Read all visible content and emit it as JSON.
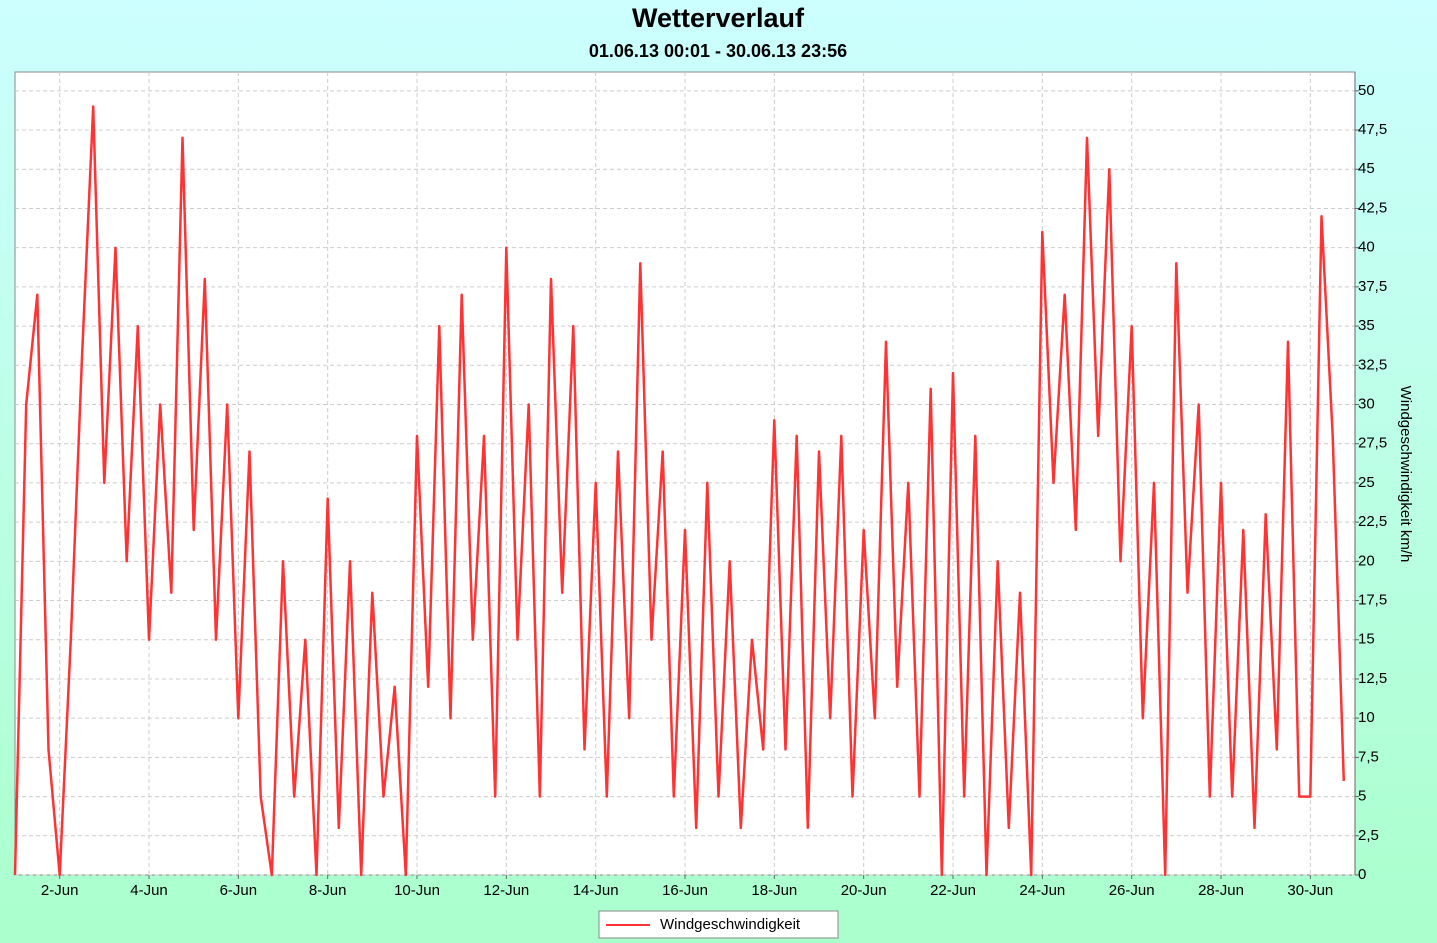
{
  "chart_data": {
    "type": "line",
    "title": "Wetterverlauf",
    "subtitle": "01.06.13 00:01 - 30.06.13 23:56",
    "y_label": "Windgeschwindigkeit km/h",
    "x": [
      "2013-06-01T00:00",
      "2013-06-01T06:00",
      "2013-06-01T12:00",
      "2013-06-01T18:00",
      "2013-06-02T00:00",
      "2013-06-02T06:00",
      "2013-06-02T12:00",
      "2013-06-02T18:00",
      "2013-06-03T00:00",
      "2013-06-03T06:00",
      "2013-06-03T12:00",
      "2013-06-03T18:00",
      "2013-06-04T00:00",
      "2013-06-04T06:00",
      "2013-06-04T12:00",
      "2013-06-04T18:00",
      "2013-06-05T00:00",
      "2013-06-05T06:00",
      "2013-06-05T12:00",
      "2013-06-05T18:00",
      "2013-06-06T00:00",
      "2013-06-06T06:00",
      "2013-06-06T12:00",
      "2013-06-06T18:00",
      "2013-06-07T00:00",
      "2013-06-07T06:00",
      "2013-06-07T12:00",
      "2013-06-07T18:00",
      "2013-06-08T00:00",
      "2013-06-08T06:00",
      "2013-06-08T12:00",
      "2013-06-08T18:00",
      "2013-06-09T00:00",
      "2013-06-09T06:00",
      "2013-06-09T12:00",
      "2013-06-09T18:00",
      "2013-06-10T00:00",
      "2013-06-10T06:00",
      "2013-06-10T12:00",
      "2013-06-10T18:00",
      "2013-06-11T00:00",
      "2013-06-11T06:00",
      "2013-06-11T12:00",
      "2013-06-11T18:00",
      "2013-06-12T00:00",
      "2013-06-12T06:00",
      "2013-06-12T12:00",
      "2013-06-12T18:00",
      "2013-06-13T00:00",
      "2013-06-13T06:00",
      "2013-06-13T12:00",
      "2013-06-13T18:00",
      "2013-06-14T00:00",
      "2013-06-14T06:00",
      "2013-06-14T12:00",
      "2013-06-14T18:00",
      "2013-06-15T00:00",
      "2013-06-15T06:00",
      "2013-06-15T12:00",
      "2013-06-15T18:00",
      "2013-06-16T00:00",
      "2013-06-16T06:00",
      "2013-06-16T12:00",
      "2013-06-16T18:00",
      "2013-06-17T00:00",
      "2013-06-17T06:00",
      "2013-06-17T12:00",
      "2013-06-17T18:00",
      "2013-06-18T00:00",
      "2013-06-18T06:00",
      "2013-06-18T12:00",
      "2013-06-18T18:00",
      "2013-06-19T00:00",
      "2013-06-19T06:00",
      "2013-06-19T12:00",
      "2013-06-19T18:00",
      "2013-06-20T00:00",
      "2013-06-20T06:00",
      "2013-06-20T12:00",
      "2013-06-20T18:00",
      "2013-06-21T00:00",
      "2013-06-21T06:00",
      "2013-06-21T12:00",
      "2013-06-21T18:00",
      "2013-06-22T00:00",
      "2013-06-22T06:00",
      "2013-06-22T12:00",
      "2013-06-22T18:00",
      "2013-06-23T00:00",
      "2013-06-23T06:00",
      "2013-06-23T12:00",
      "2013-06-23T18:00",
      "2013-06-24T00:00",
      "2013-06-24T06:00",
      "2013-06-24T12:00",
      "2013-06-24T18:00",
      "2013-06-25T00:00",
      "2013-06-25T06:00",
      "2013-06-25T12:00",
      "2013-06-25T18:00",
      "2013-06-26T00:00",
      "2013-06-26T06:00",
      "2013-06-26T12:00",
      "2013-06-26T18:00",
      "2013-06-27T00:00",
      "2013-06-27T06:00",
      "2013-06-27T12:00",
      "2013-06-27T18:00",
      "2013-06-28T00:00",
      "2013-06-28T06:00",
      "2013-06-28T12:00",
      "2013-06-28T18:00",
      "2013-06-29T00:00",
      "2013-06-29T06:00",
      "2013-06-29T12:00",
      "2013-06-29T18:00",
      "2013-06-30T00:00",
      "2013-06-30T06:00",
      "2013-06-30T12:00",
      "2013-06-30T18:00"
    ],
    "series": [
      {
        "name": "Windgeschwindigkeit",
        "color": "#ff3333",
        "values": [
          0,
          30,
          37,
          8,
          0,
          15,
          33,
          49,
          25,
          40,
          20,
          35,
          15,
          30,
          18,
          47,
          22,
          38,
          15,
          30,
          10,
          27,
          5,
          0,
          20,
          5,
          15,
          0,
          24,
          3,
          20,
          0,
          18,
          5,
          12,
          0,
          28,
          12,
          35,
          10,
          37,
          15,
          28,
          5,
          40,
          15,
          30,
          5,
          38,
          18,
          35,
          8,
          25,
          5,
          27,
          10,
          39,
          15,
          27,
          5,
          22,
          3,
          25,
          5,
          20,
          3,
          15,
          8,
          29,
          8,
          28,
          3,
          27,
          10,
          28,
          5,
          22,
          10,
          34,
          12,
          25,
          5,
          31,
          0,
          32,
          5,
          28,
          0,
          20,
          3,
          18,
          0,
          41,
          25,
          37,
          22,
          47,
          28,
          45,
          20,
          35,
          10,
          25,
          0,
          39,
          18,
          30,
          5,
          25,
          5,
          22,
          3,
          23,
          8,
          34,
          5,
          5,
          42,
          28,
          6
        ]
      }
    ],
    "xlim": [
      "2013-06-01T00:00",
      "2013-07-01T00:00"
    ],
    "xticks": [
      {
        "value": "2013-06-02T00:00",
        "label": "2-Jun"
      },
      {
        "value": "2013-06-04T00:00",
        "label": "4-Jun"
      },
      {
        "value": "2013-06-06T00:00",
        "label": "6-Jun"
      },
      {
        "value": "2013-06-08T00:00",
        "label": "8-Jun"
      },
      {
        "value": "2013-06-10T00:00",
        "label": "10-Jun"
      },
      {
        "value": "2013-06-12T00:00",
        "label": "12-Jun"
      },
      {
        "value": "2013-06-14T00:00",
        "label": "14-Jun"
      },
      {
        "value": "2013-06-16T00:00",
        "label": "16-Jun"
      },
      {
        "value": "2013-06-18T00:00",
        "label": "18-Jun"
      },
      {
        "value": "2013-06-20T00:00",
        "label": "20-Jun"
      },
      {
        "value": "2013-06-22T00:00",
        "label": "22-Jun"
      },
      {
        "value": "2013-06-24T00:00",
        "label": "24-Jun"
      },
      {
        "value": "2013-06-26T00:00",
        "label": "26-Jun"
      },
      {
        "value": "2013-06-28T00:00",
        "label": "28-Jun"
      },
      {
        "value": "2013-06-30T00:00",
        "label": "30-Jun"
      }
    ],
    "ylim": [
      0,
      51.2
    ],
    "yticks": [
      0,
      {
        "value": 2.5,
        "label": "2,5"
      },
      5,
      {
        "value": 7.5,
        "label": "7,5"
      },
      10,
      {
        "value": 12.5,
        "label": "12,5"
      },
      15,
      {
        "value": 17.5,
        "label": "17,5"
      },
      20,
      {
        "value": 22.5,
        "label": "22,5"
      },
      25,
      {
        "value": 27.5,
        "label": "27,5"
      },
      30,
      {
        "value": 32.5,
        "label": "32,5"
      },
      35,
      {
        "value": 37.5,
        "label": "37,5"
      },
      40,
      {
        "value": 42.5,
        "label": "42,5"
      },
      45,
      {
        "value": 47.5,
        "label": "47,5"
      },
      50
    ],
    "grid": true
  }
}
